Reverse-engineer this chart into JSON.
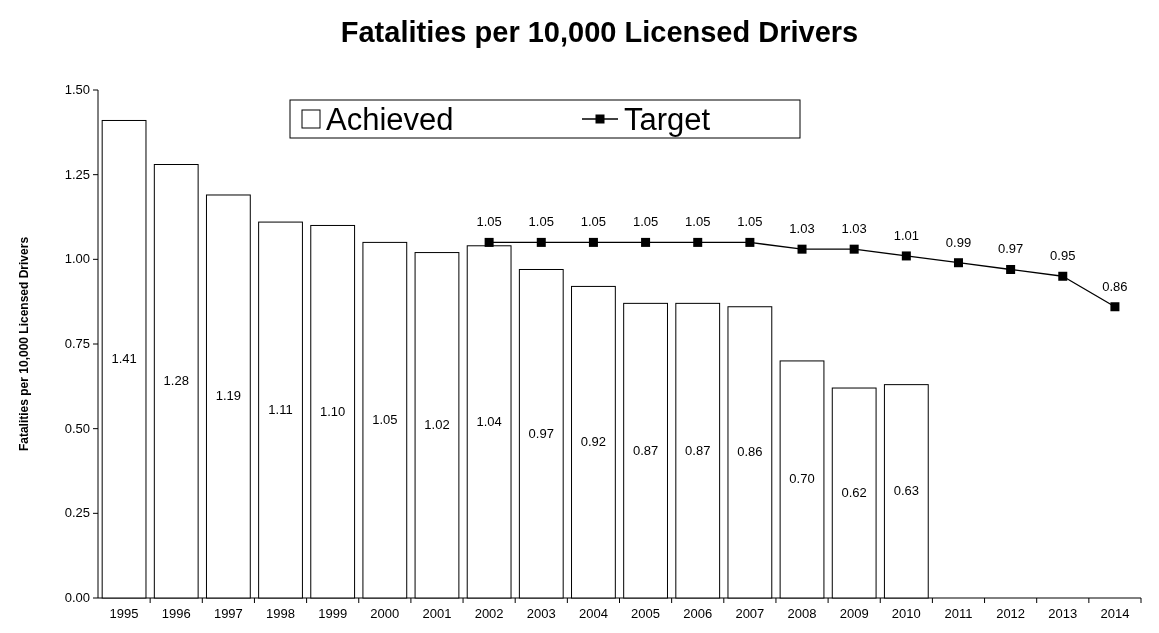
{
  "chart_data": {
    "type": "bar",
    "title": "Fatalities per 10,000 Licensed Drivers",
    "ylabel": "Fatalities per 10,000 Licensed Drivers",
    "categories": [
      "1995",
      "1996",
      "1997",
      "1998",
      "1999",
      "2000",
      "2001",
      "2002",
      "2003",
      "2004",
      "2005",
      "2006",
      "2007",
      "2008",
      "2009",
      "2010",
      "2011",
      "2012",
      "2013",
      "2014"
    ],
    "series": [
      {
        "name": "Achieved",
        "color": "#ffffff",
        "values": [
          1.41,
          1.28,
          1.19,
          1.11,
          1.1,
          1.05,
          1.02,
          1.04,
          0.97,
          0.92,
          0.87,
          0.87,
          0.86,
          0.7,
          0.62,
          0.63,
          null,
          null,
          null,
          null
        ],
        "value_labels": [
          "1.41",
          "1.28",
          "1.19",
          "1.11",
          "1.10",
          "1.05",
          "1.02",
          "1.04",
          "0.97",
          "0.92",
          "0.87",
          "0.87",
          "0.86",
          "0.70",
          "0.62",
          "0.63",
          null,
          null,
          null,
          null
        ]
      },
      {
        "name": "Target",
        "type": "line",
        "color": "#000000",
        "marker": "square",
        "values": [
          null,
          null,
          null,
          null,
          null,
          null,
          null,
          1.05,
          1.05,
          1.05,
          1.05,
          1.05,
          1.05,
          1.03,
          1.03,
          1.01,
          0.99,
          0.97,
          0.95,
          0.86
        ],
        "value_labels": [
          null,
          null,
          null,
          null,
          null,
          null,
          null,
          "1.05",
          "1.05",
          "1.05",
          "1.05",
          "1.05",
          "1.05",
          "1.03",
          "1.03",
          "1.01",
          "0.99",
          "0.97",
          "0.95",
          "0.86"
        ]
      }
    ],
    "ylim": [
      0,
      1.5
    ],
    "yticks": [
      {
        "value": 0,
        "label": "0.00"
      },
      {
        "value": 0.25,
        "label": "0.25"
      },
      {
        "value": 0.5,
        "label": "0.50"
      },
      {
        "value": 0.75,
        "label": "0.75"
      },
      {
        "value": 1,
        "label": "1.00"
      },
      {
        "value": 1.25,
        "label": "1.25"
      },
      {
        "value": 1.5,
        "label": "1.50"
      }
    ],
    "grid": false,
    "legend": "top"
  }
}
